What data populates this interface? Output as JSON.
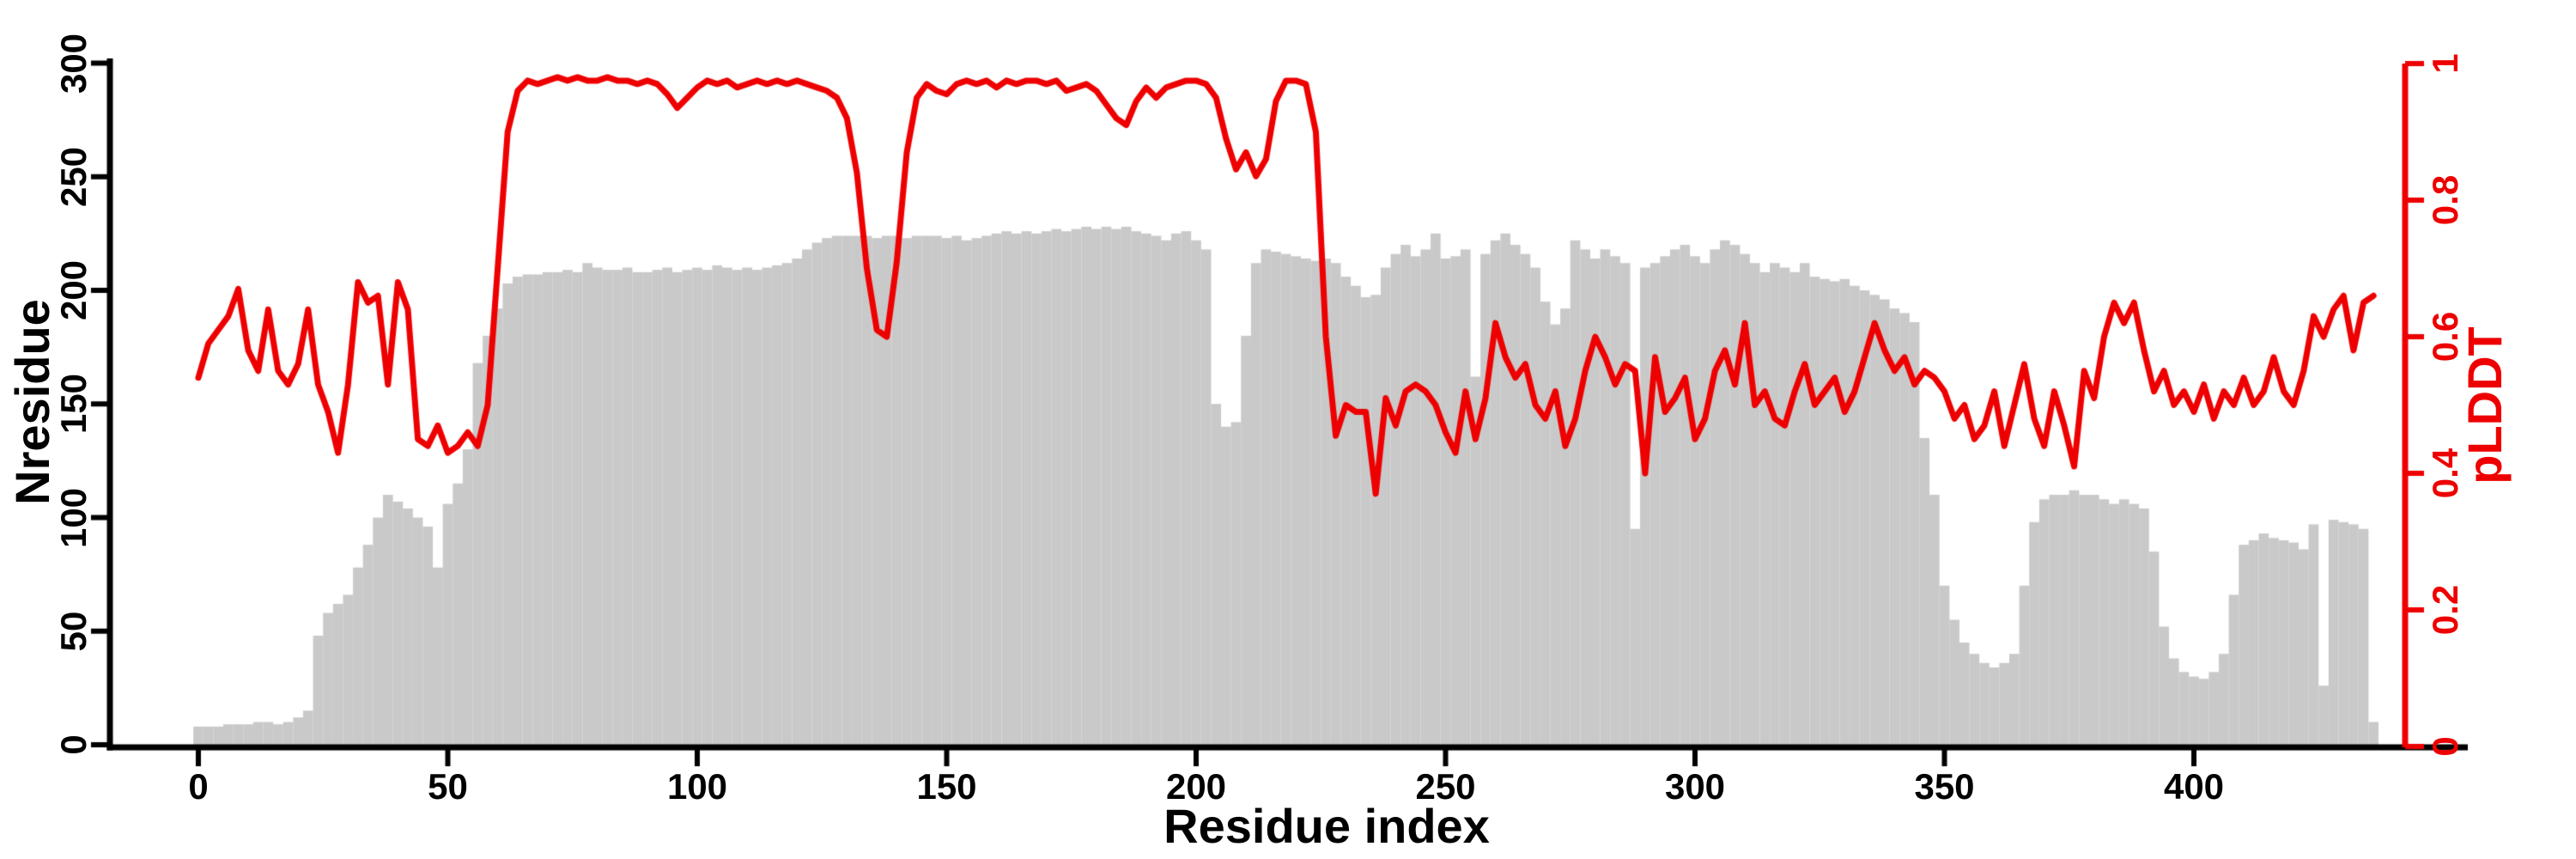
{
  "figure": {
    "background": "#ffffff",
    "colors": {
      "bars": "#c9c9c9",
      "line": "#ee0000",
      "axes": "#000000"
    }
  },
  "chart_data": {
    "type": "combo-bar-line",
    "grid": false,
    "legend": "none",
    "x_axis": {
      "title": "Residue index",
      "tick_values": [
        0,
        50,
        100,
        150,
        200,
        250,
        300,
        350,
        400
      ],
      "tick_labels": [
        "0",
        "50",
        "100",
        "150",
        "200",
        "250",
        "300",
        "350",
        "400"
      ],
      "xlim": [
        -18,
        455
      ]
    },
    "left_axis": {
      "title": "Nresidue",
      "tick_values": [
        0,
        50,
        100,
        150,
        200,
        250,
        300
      ],
      "tick_labels": [
        "0",
        "50",
        "100",
        "150",
        "200",
        "250",
        "300"
      ],
      "ylim": [
        0,
        300
      ]
    },
    "right_axis": {
      "title": "pLDDT",
      "tick_values": [
        0,
        0.2,
        0.4,
        0.6,
        0.8,
        1
      ],
      "tick_labels": [
        "0",
        "0.2",
        "0.4",
        "0.6",
        "0.8",
        "1"
      ],
      "ylim": [
        0,
        1
      ]
    },
    "x_start": 0,
    "x_step": 2,
    "x_end": 436,
    "series": [
      {
        "name": "Nresidue",
        "type": "bar",
        "axis": "left",
        "color": "#c9c9c9",
        "values": [
          8,
          8,
          8,
          9,
          9,
          9,
          10,
          10,
          9,
          10,
          12,
          15,
          48,
          58,
          62,
          66,
          78,
          88,
          100,
          110,
          107,
          104,
          100,
          96,
          78,
          106,
          115,
          130,
          168,
          180,
          192,
          203,
          206,
          207,
          207,
          208,
          208,
          209,
          208,
          212,
          210,
          209,
          209,
          210,
          208,
          208,
          209,
          210,
          208,
          209,
          210,
          209,
          211,
          210,
          209,
          210,
          209,
          210,
          211,
          212,
          214,
          218,
          221,
          223,
          224,
          224,
          224,
          224,
          223,
          224,
          224,
          223,
          224,
          224,
          224,
          223,
          224,
          222,
          223,
          224,
          225,
          226,
          225,
          226,
          225,
          226,
          227,
          226,
          227,
          228,
          227,
          228,
          227,
          228,
          226,
          225,
          224,
          222,
          225,
          226,
          222,
          218,
          150,
          140,
          142,
          180,
          212,
          218,
          217,
          216,
          215,
          214,
          213,
          214,
          212,
          206,
          202,
          197,
          198,
          210,
          216,
          220,
          215,
          218,
          225,
          214,
          215,
          218,
          162,
          216,
          222,
          225,
          220,
          216,
          210,
          195,
          185,
          192,
          222,
          218,
          214,
          218,
          215,
          212,
          95,
          210,
          212,
          215,
          218,
          220,
          215,
          212,
          218,
          222,
          220,
          216,
          212,
          208,
          212,
          210,
          208,
          212,
          206,
          205,
          204,
          205,
          202,
          200,
          198,
          196,
          192,
          190,
          186,
          135,
          110,
          70,
          55,
          45,
          40,
          36,
          34,
          36,
          40,
          70,
          98,
          108,
          110,
          110,
          112,
          110,
          110,
          108,
          106,
          108,
          106,
          104,
          85,
          52,
          38,
          32,
          30,
          29,
          32,
          40,
          66,
          88,
          90,
          93,
          91,
          90,
          89,
          86,
          97,
          26,
          99,
          98,
          97,
          95,
          10
        ]
      },
      {
        "name": "pLDDT",
        "type": "line",
        "axis": "right",
        "color": "#ee0000",
        "values": [
          0.54,
          0.59,
          0.61,
          0.63,
          0.67,
          0.58,
          0.55,
          0.64,
          0.55,
          0.53,
          0.56,
          0.64,
          0.53,
          0.49,
          0.43,
          0.53,
          0.68,
          0.65,
          0.66,
          0.53,
          0.68,
          0.64,
          0.45,
          0.44,
          0.47,
          0.43,
          0.44,
          0.46,
          0.44,
          0.5,
          0.7,
          0.9,
          0.96,
          0.975,
          0.97,
          0.975,
          0.98,
          0.975,
          0.98,
          0.975,
          0.975,
          0.98,
          0.975,
          0.975,
          0.97,
          0.975,
          0.97,
          0.955,
          0.935,
          0.95,
          0.965,
          0.975,
          0.97,
          0.975,
          0.965,
          0.97,
          0.975,
          0.97,
          0.975,
          0.97,
          0.975,
          0.97,
          0.965,
          0.96,
          0.95,
          0.92,
          0.84,
          0.7,
          0.61,
          0.6,
          0.71,
          0.87,
          0.95,
          0.97,
          0.96,
          0.955,
          0.97,
          0.975,
          0.97,
          0.975,
          0.965,
          0.975,
          0.97,
          0.975,
          0.975,
          0.97,
          0.975,
          0.96,
          0.965,
          0.97,
          0.96,
          0.94,
          0.92,
          0.91,
          0.945,
          0.965,
          0.95,
          0.965,
          0.97,
          0.975,
          0.975,
          0.97,
          0.95,
          0.89,
          0.845,
          0.87,
          0.835,
          0.86,
          0.945,
          0.975,
          0.975,
          0.97,
          0.9,
          0.6,
          0.455,
          0.5,
          0.49,
          0.49,
          0.37,
          0.51,
          0.47,
          0.52,
          0.53,
          0.52,
          0.5,
          0.46,
          0.43,
          0.52,
          0.45,
          0.51,
          0.62,
          0.57,
          0.54,
          0.56,
          0.5,
          0.48,
          0.52,
          0.44,
          0.48,
          0.55,
          0.6,
          0.57,
          0.53,
          0.56,
          0.55,
          0.4,
          0.57,
          0.49,
          0.51,
          0.54,
          0.45,
          0.48,
          0.55,
          0.58,
          0.53,
          0.62,
          0.5,
          0.52,
          0.48,
          0.47,
          0.52,
          0.56,
          0.5,
          0.52,
          0.54,
          0.49,
          0.52,
          0.57,
          0.62,
          0.58,
          0.55,
          0.57,
          0.53,
          0.55,
          0.54,
          0.52,
          0.48,
          0.5,
          0.45,
          0.47,
          0.52,
          0.44,
          0.5,
          0.56,
          0.48,
          0.44,
          0.52,
          0.47,
          0.41,
          0.55,
          0.51,
          0.6,
          0.65,
          0.62,
          0.65,
          0.58,
          0.52,
          0.55,
          0.5,
          0.52,
          0.49,
          0.53,
          0.48,
          0.52,
          0.5,
          0.54,
          0.5,
          0.52,
          0.57,
          0.52,
          0.5,
          0.55,
          0.63,
          0.6,
          0.64,
          0.66,
          0.58,
          0.65,
          0.66
        ]
      }
    ]
  }
}
